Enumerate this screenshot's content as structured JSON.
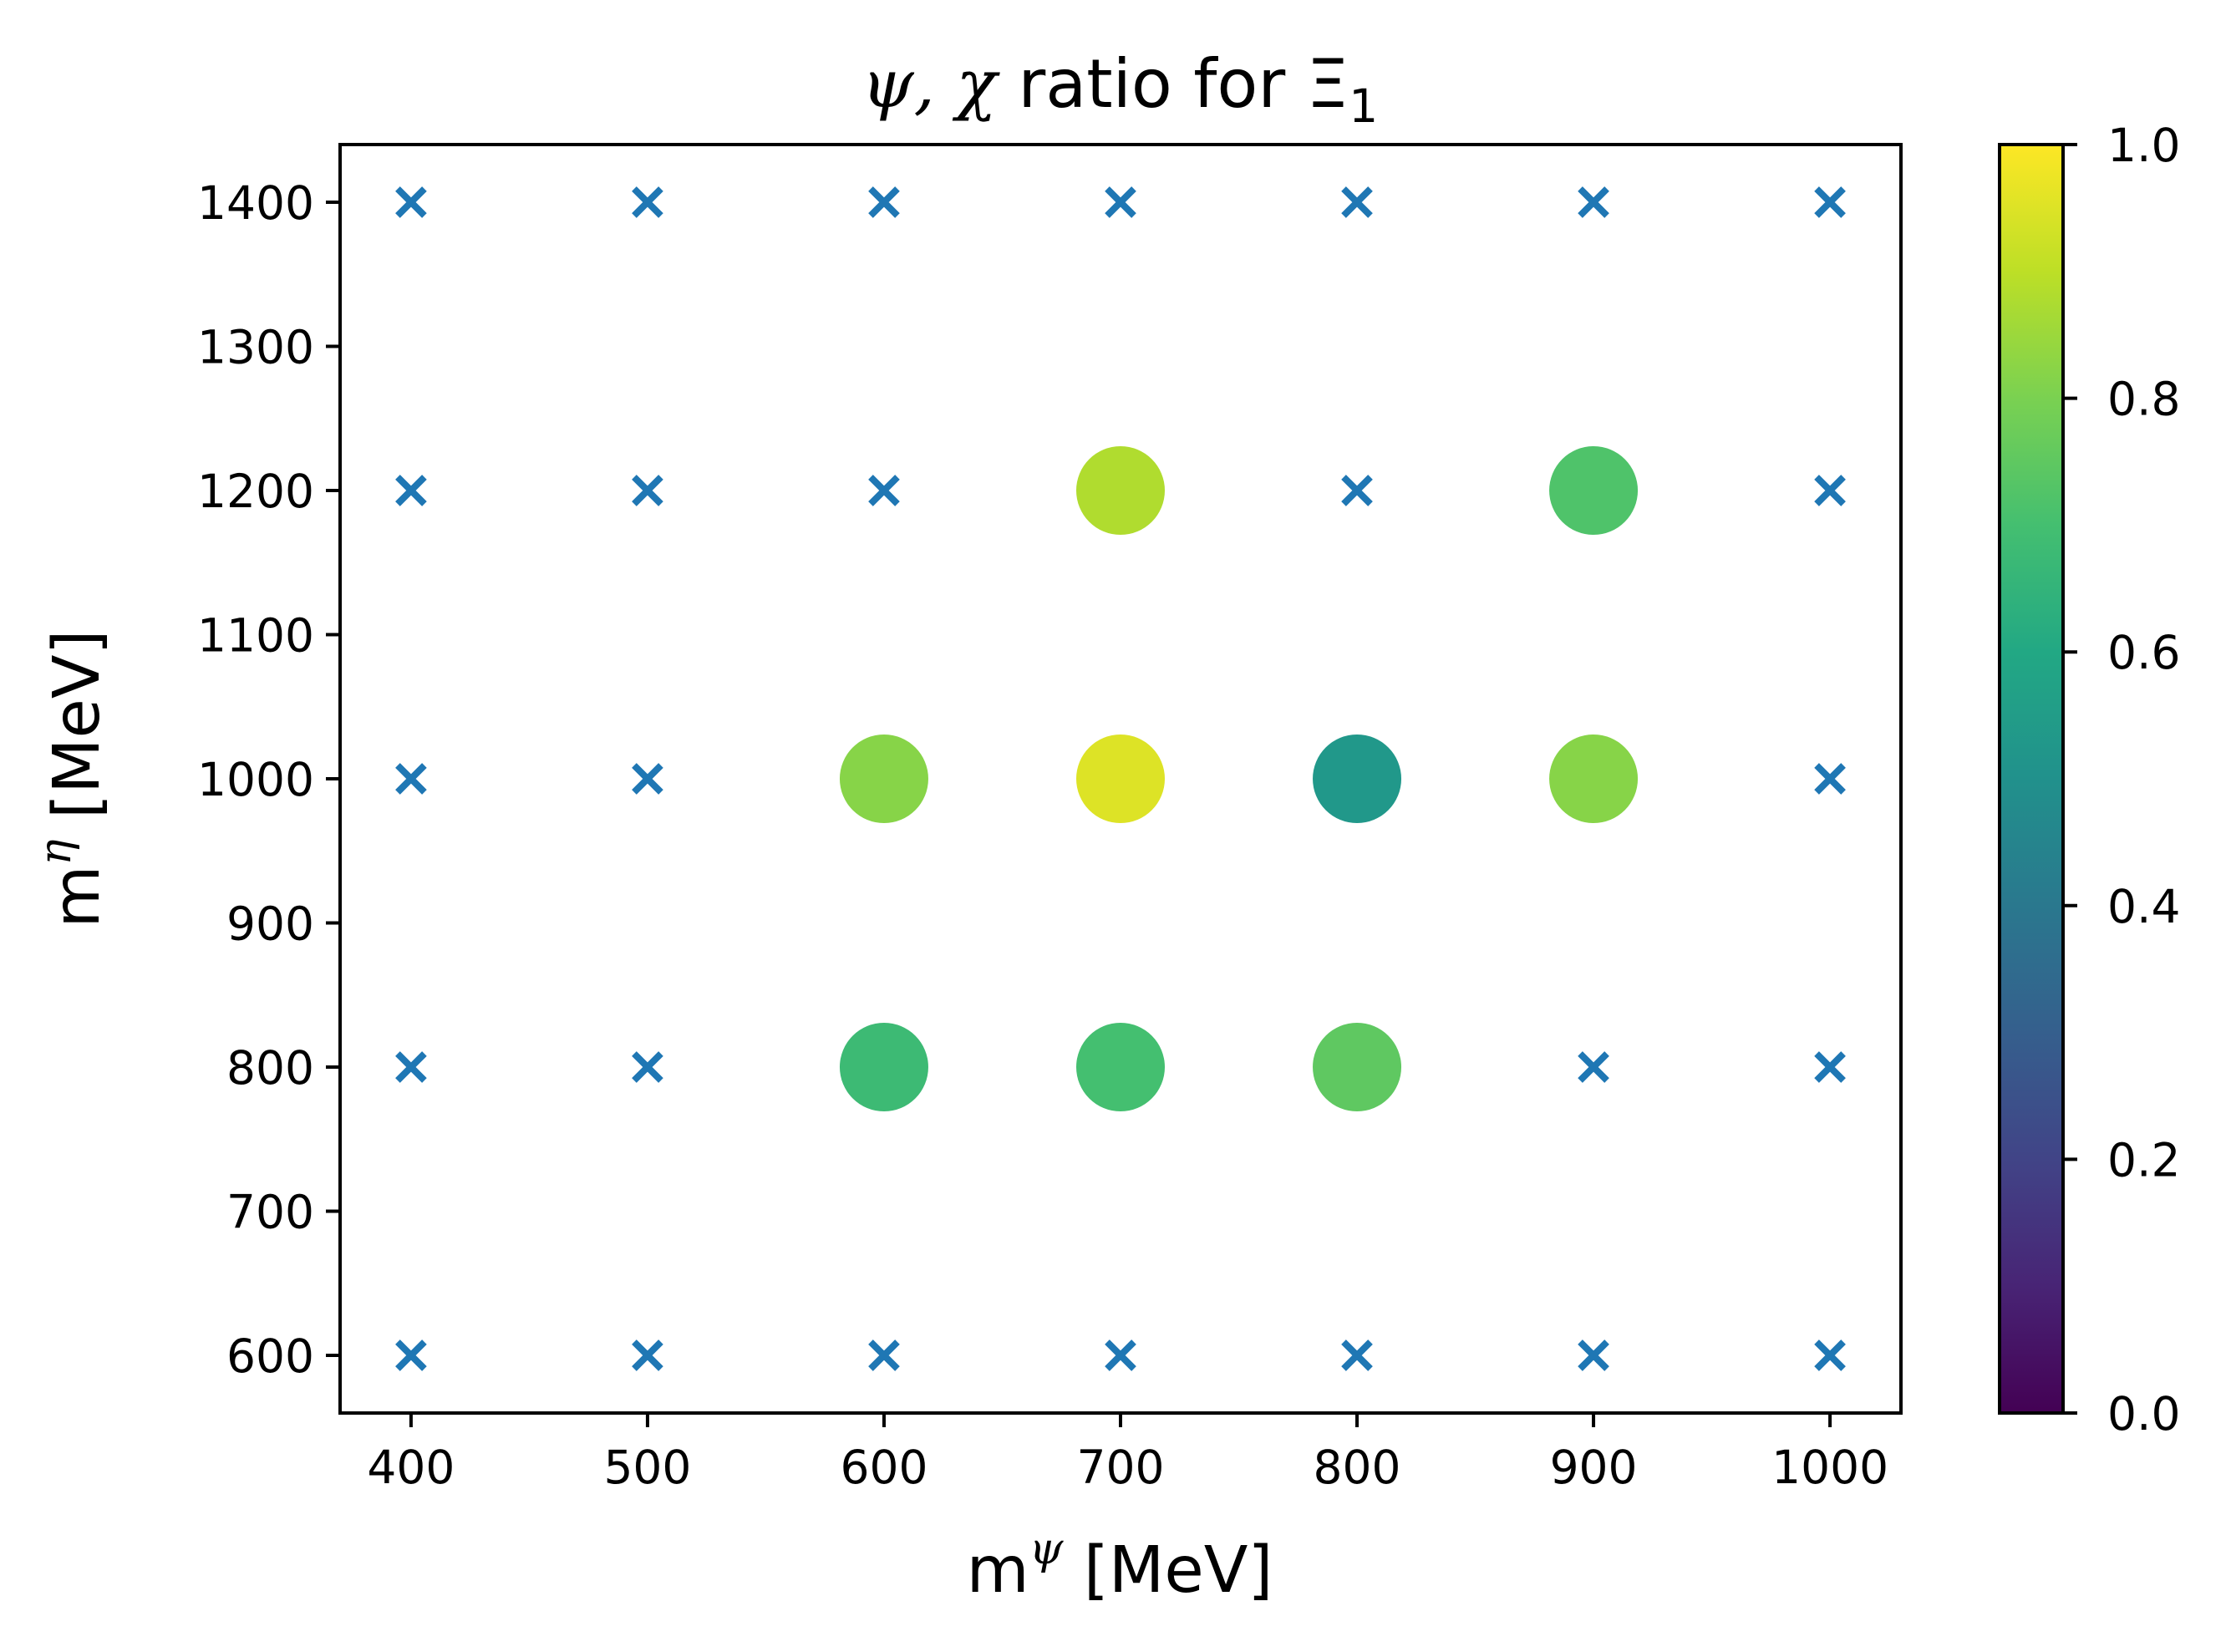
{
  "chart_data": {
    "type": "scatter",
    "title": {
      "prefix": "ψ, χ",
      "middle": " ratio for Ξ",
      "subscript": "1"
    },
    "xlabel": {
      "base": "m",
      "sup": "ψ",
      "unit": " [MeV]"
    },
    "ylabel": {
      "base": "m",
      "sup": "η",
      "unit": " [MeV]"
    },
    "xlim": [
      370,
      1030
    ],
    "ylim": [
      560,
      1440
    ],
    "xticks": [
      400,
      500,
      600,
      700,
      800,
      900,
      1000
    ],
    "yticks": [
      600,
      700,
      800,
      900,
      1000,
      1100,
      1200,
      1300,
      1400
    ],
    "grid": false,
    "colorbar": {
      "colormap": "viridis",
      "range": [
        0.0,
        1.0
      ],
      "ticks": [
        "0.0",
        "0.2",
        "0.4",
        "0.6",
        "0.8",
        "1.0"
      ]
    },
    "marker_color_no_value": "#1f77b4",
    "no_value_points": [
      {
        "x": 400,
        "y": 1400
      },
      {
        "x": 500,
        "y": 1400
      },
      {
        "x": 600,
        "y": 1400
      },
      {
        "x": 700,
        "y": 1400
      },
      {
        "x": 800,
        "y": 1400
      },
      {
        "x": 900,
        "y": 1400
      },
      {
        "x": 1000,
        "y": 1400
      },
      {
        "x": 400,
        "y": 1200
      },
      {
        "x": 500,
        "y": 1200
      },
      {
        "x": 600,
        "y": 1200
      },
      {
        "x": 800,
        "y": 1200
      },
      {
        "x": 1000,
        "y": 1200
      },
      {
        "x": 400,
        "y": 1000
      },
      {
        "x": 500,
        "y": 1000
      },
      {
        "x": 1000,
        "y": 1000
      },
      {
        "x": 400,
        "y": 800
      },
      {
        "x": 500,
        "y": 800
      },
      {
        "x": 900,
        "y": 800
      },
      {
        "x": 1000,
        "y": 800
      },
      {
        "x": 400,
        "y": 600
      },
      {
        "x": 500,
        "y": 600
      },
      {
        "x": 600,
        "y": 600
      },
      {
        "x": 700,
        "y": 600
      },
      {
        "x": 800,
        "y": 600
      },
      {
        "x": 900,
        "y": 600
      },
      {
        "x": 1000,
        "y": 600
      }
    ],
    "value_points": [
      {
        "x": 700,
        "y": 1200,
        "value": 0.88
      },
      {
        "x": 900,
        "y": 1200,
        "value": 0.72
      },
      {
        "x": 600,
        "y": 1000,
        "value": 0.82
      },
      {
        "x": 700,
        "y": 1000,
        "value": 0.95
      },
      {
        "x": 800,
        "y": 1000,
        "value": 0.53
      },
      {
        "x": 900,
        "y": 1000,
        "value": 0.82
      },
      {
        "x": 600,
        "y": 800,
        "value": 0.68
      },
      {
        "x": 700,
        "y": 800,
        "value": 0.7
      },
      {
        "x": 800,
        "y": 800,
        "value": 0.75
      }
    ]
  }
}
